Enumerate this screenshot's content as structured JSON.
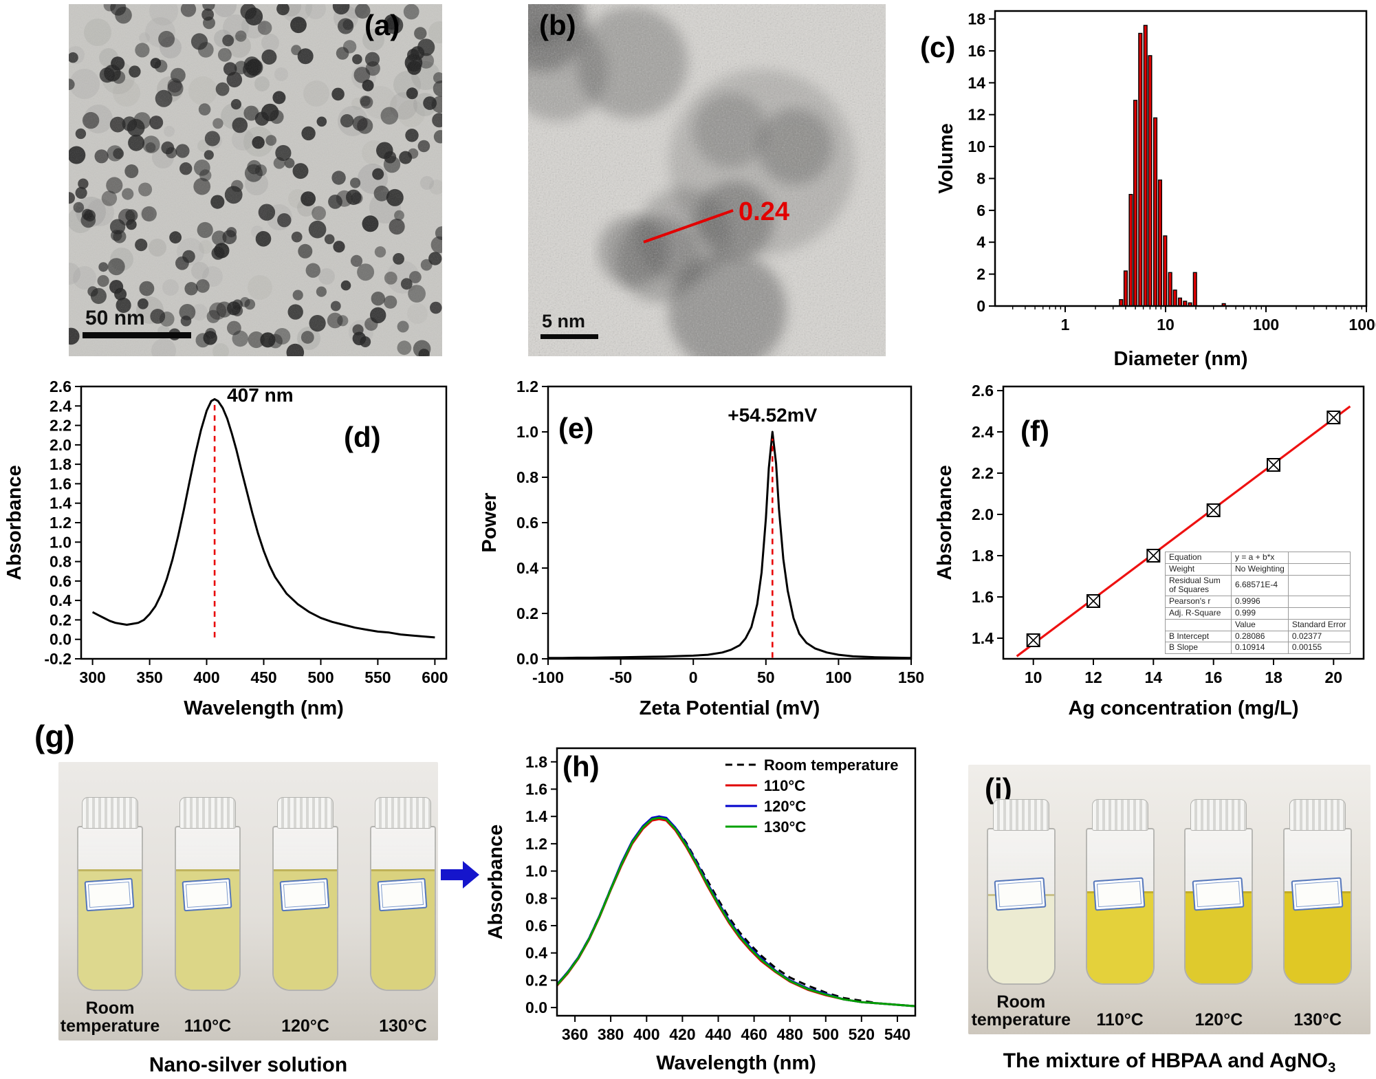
{
  "figure": {
    "flow_arrow_color": "#1515cc",
    "panels": {
      "a": {
        "label": "(a)",
        "scale_bar": "50 nm"
      },
      "b": {
        "label": "(b)",
        "scale_bar": "5 nm",
        "lattice_annotation": "0.24"
      },
      "c": {
        "label": "(c)"
      },
      "d": {
        "label": "(d)"
      },
      "e": {
        "label": "(e)"
      },
      "f": {
        "label": "(f)",
        "inset_table": [
          [
            "Equation",
            "y = a + b*x",
            ""
          ],
          [
            "Weight",
            "No Weighting",
            ""
          ],
          [
            "Residual Sum of Squares",
            "6.68571E-4",
            ""
          ],
          [
            "Pearson's r",
            "0.9996",
            ""
          ],
          [
            "Adj. R-Square",
            "0.999",
            ""
          ],
          [
            "",
            "Value",
            "Standard Error"
          ],
          [
            "B Intercept",
            "0.28086",
            "0.02377"
          ],
          [
            "B Slope",
            "0.10914",
            "0.00155"
          ]
        ]
      },
      "g": {
        "label": "(g)",
        "caption": "Nano-silver solution",
        "vials": [
          {
            "label": "Room temperature",
            "liquid_color": "#ddd88e",
            "fill": 0.74
          },
          {
            "label": "110°C",
            "liquid_color": "#dcd687",
            "fill": 0.74
          },
          {
            "label": "120°C",
            "liquid_color": "#dbd483",
            "fill": 0.74
          },
          {
            "label": "130°C",
            "liquid_color": "#dad27e",
            "fill": 0.74
          }
        ]
      },
      "h": {
        "label": "(h)"
      },
      "i": {
        "label": "(i)",
        "caption_main": "The mixture of HBPAA and AgNO",
        "caption_sub": "3",
        "vials": [
          {
            "label": "Room temperature",
            "liquid_color": "#ecebd2",
            "fill": 0.58
          },
          {
            "label": "110°C",
            "liquid_color": "#e4d13b",
            "fill": 0.6
          },
          {
            "label": "120°C",
            "liquid_color": "#dfca2d",
            "fill": 0.6
          },
          {
            "label": "130°C",
            "liquid_color": "#e0c825",
            "fill": 0.6
          }
        ]
      }
    }
  },
  "chart_data": [
    {
      "id": "c",
      "type": "bar",
      "logx": true,
      "title": "",
      "xlabel": "Diameter (nm)",
      "ylabel": "Volume",
      "xlim": [
        0.2,
        1000
      ],
      "ylim": [
        0,
        18.5
      ],
      "xticks": [
        1,
        10,
        100,
        1000
      ],
      "yticks": [
        0,
        2,
        4,
        6,
        8,
        10,
        12,
        14,
        16,
        18
      ],
      "xtick_dec": 0,
      "ytick_dec": 0,
      "bar_color": "#e00000",
      "categories": [
        3.6,
        4.0,
        4.5,
        5.0,
        5.6,
        6.3,
        7.0,
        7.9,
        8.8,
        9.9,
        11.1,
        12.4,
        13.9,
        15.6,
        17.5,
        19.6,
        38.0
      ],
      "values": [
        0.4,
        2.2,
        7.0,
        12.9,
        17.1,
        17.6,
        15.7,
        11.8,
        7.9,
        4.4,
        2.1,
        1.0,
        0.5,
        0.3,
        0.2,
        2.1,
        0.15
      ]
    },
    {
      "id": "d",
      "type": "line",
      "title": "",
      "xlabel": "Wavelength (nm)",
      "ylabel": "Absorbance",
      "xlim": [
        290,
        610
      ],
      "ylim": [
        -0.2,
        2.6
      ],
      "xticks": [
        300,
        350,
        400,
        450,
        500,
        550,
        600
      ],
      "yticks": [
        -0.2,
        0,
        0.2,
        0.4,
        0.6,
        0.8,
        1,
        1.2,
        1.4,
        1.6,
        1.8,
        2,
        2.2,
        2.4,
        2.6
      ],
      "xtick_dec": 0,
      "ytick_dec": 1,
      "annotation": {
        "text": "407 nm",
        "x": 407,
        "y_bottom": 0.02,
        "y_top": 2.42,
        "text_dx": 18,
        "text_y": 2.5,
        "anchor": "start"
      },
      "series": [
        {
          "name": "UV-Vis absorbance",
          "color": "#000000",
          "x": [
            300,
            305,
            310,
            315,
            320,
            325,
            330,
            335,
            340,
            345,
            350,
            355,
            360,
            365,
            370,
            375,
            380,
            385,
            390,
            395,
            400,
            404,
            407,
            410,
            414,
            418,
            422,
            426,
            430,
            435,
            440,
            445,
            450,
            455,
            460,
            470,
            480,
            490,
            500,
            510,
            520,
            530,
            540,
            550,
            560,
            570,
            580,
            590,
            600
          ],
          "values": [
            0.28,
            0.25,
            0.22,
            0.19,
            0.17,
            0.16,
            0.15,
            0.16,
            0.17,
            0.2,
            0.26,
            0.34,
            0.46,
            0.62,
            0.82,
            1.06,
            1.33,
            1.62,
            1.9,
            2.15,
            2.35,
            2.45,
            2.47,
            2.45,
            2.38,
            2.27,
            2.12,
            1.95,
            1.76,
            1.53,
            1.3,
            1.09,
            0.91,
            0.76,
            0.64,
            0.47,
            0.36,
            0.28,
            0.22,
            0.18,
            0.15,
            0.12,
            0.1,
            0.08,
            0.07,
            0.05,
            0.04,
            0.03,
            0.02
          ]
        }
      ]
    },
    {
      "id": "e",
      "type": "line",
      "title": "",
      "xlabel": "Zeta Potential (mV)",
      "ylabel": "Power",
      "xlim": [
        -100,
        150
      ],
      "ylim": [
        0,
        1.2
      ],
      "xticks": [
        -100,
        -50,
        0,
        50,
        100,
        150
      ],
      "yticks": [
        0,
        0.2,
        0.4,
        0.6,
        0.8,
        1,
        1.2
      ],
      "xtick_dec": 0,
      "ytick_dec": 1,
      "annotation": {
        "text": "+54.52mV",
        "x": 54.52,
        "y_bottom": 0.005,
        "y_top": 0.97,
        "text_dx": 0,
        "text_y": 1.07,
        "anchor": "middle"
      },
      "series": [
        {
          "name": "zeta potential distribution",
          "color": "#000000",
          "x": [
            -100,
            -90,
            -80,
            -70,
            -60,
            -50,
            -40,
            -30,
            -20,
            -10,
            0,
            10,
            20,
            26,
            32,
            36,
            40,
            44,
            47,
            50,
            52,
            54.5,
            57,
            59,
            62,
            65,
            69,
            73,
            78,
            84,
            92,
            100,
            110,
            125,
            150
          ],
          "values": [
            0.004,
            0.004,
            0.005,
            0.005,
            0.006,
            0.007,
            0.008,
            0.009,
            0.01,
            0.012,
            0.014,
            0.018,
            0.028,
            0.04,
            0.06,
            0.09,
            0.14,
            0.24,
            0.38,
            0.62,
            0.84,
            1.0,
            0.86,
            0.66,
            0.44,
            0.3,
            0.18,
            0.11,
            0.07,
            0.045,
            0.028,
            0.018,
            0.011,
            0.007,
            0.004
          ]
        }
      ]
    },
    {
      "id": "f",
      "type": "scatter",
      "title": "",
      "xlabel": "Ag concentration (mg/L)",
      "ylabel": "Absorbance",
      "xlim": [
        9,
        21
      ],
      "ylim": [
        1.3,
        2.62
      ],
      "xticks": [
        10,
        12,
        14,
        16,
        18,
        20
      ],
      "yticks": [
        1.4,
        1.6,
        1.8,
        2,
        2.2,
        2.4,
        2.6
      ],
      "xtick_dec": 0,
      "ytick_dec": 1,
      "x": [
        10,
        12,
        14,
        16,
        18,
        20
      ],
      "values": [
        1.39,
        1.58,
        1.8,
        2.02,
        2.24,
        2.47
      ],
      "fit": {
        "intercept": 0.28086,
        "slope": 0.10914,
        "color": "#ee1111"
      }
    },
    {
      "id": "h",
      "type": "line",
      "legend": true,
      "title": "",
      "xlabel": "Wavelength (nm)",
      "ylabel": "Absorbance",
      "xlim": [
        350,
        550
      ],
      "ylim": [
        -0.06,
        1.9
      ],
      "xticks": [
        360,
        380,
        400,
        420,
        440,
        460,
        480,
        500,
        520,
        540
      ],
      "yticks": [
        0,
        0.2,
        0.4,
        0.6,
        0.8,
        1,
        1.2,
        1.4,
        1.6,
        1.8
      ],
      "xtick_dec": 0,
      "ytick_dec": 1,
      "x": [
        350,
        356,
        362,
        368,
        374,
        380,
        386,
        392,
        398,
        403,
        407,
        411,
        416,
        422,
        428,
        434,
        440,
        446,
        452,
        458,
        464,
        472,
        480,
        490,
        500,
        510,
        520,
        530,
        540,
        550
      ],
      "series": [
        {
          "name": "Room temperature",
          "color": "#000000",
          "dash": "10,7",
          "values": [
            0.17,
            0.26,
            0.37,
            0.51,
            0.68,
            0.87,
            1.05,
            1.21,
            1.32,
            1.38,
            1.4,
            1.38,
            1.32,
            1.21,
            1.07,
            0.93,
            0.79,
            0.66,
            0.55,
            0.46,
            0.38,
            0.29,
            0.22,
            0.16,
            0.11,
            0.07,
            0.05,
            0.03,
            0.02,
            0.01
          ]
        },
        {
          "name": "110°C",
          "color": "#e00000",
          "values": [
            0.16,
            0.25,
            0.36,
            0.5,
            0.67,
            0.86,
            1.04,
            1.2,
            1.31,
            1.37,
            1.38,
            1.37,
            1.3,
            1.18,
            1.04,
            0.89,
            0.75,
            0.62,
            0.51,
            0.42,
            0.34,
            0.26,
            0.19,
            0.13,
            0.09,
            0.06,
            0.04,
            0.03,
            0.02,
            0.01
          ]
        },
        {
          "name": "120°C",
          "color": "#0000cc",
          "values": [
            0.17,
            0.26,
            0.37,
            0.51,
            0.68,
            0.87,
            1.06,
            1.22,
            1.33,
            1.39,
            1.4,
            1.39,
            1.32,
            1.2,
            1.06,
            0.91,
            0.77,
            0.64,
            0.53,
            0.44,
            0.36,
            0.27,
            0.2,
            0.14,
            0.1,
            0.06,
            0.04,
            0.03,
            0.02,
            0.01
          ]
        },
        {
          "name": "130°C",
          "color": "#00a000",
          "values": [
            0.165,
            0.255,
            0.365,
            0.505,
            0.675,
            0.865,
            1.05,
            1.21,
            1.32,
            1.38,
            1.39,
            1.38,
            1.31,
            1.19,
            1.05,
            0.9,
            0.76,
            0.63,
            0.52,
            0.43,
            0.35,
            0.265,
            0.195,
            0.135,
            0.095,
            0.06,
            0.04,
            0.03,
            0.02,
            0.01
          ]
        }
      ]
    }
  ]
}
